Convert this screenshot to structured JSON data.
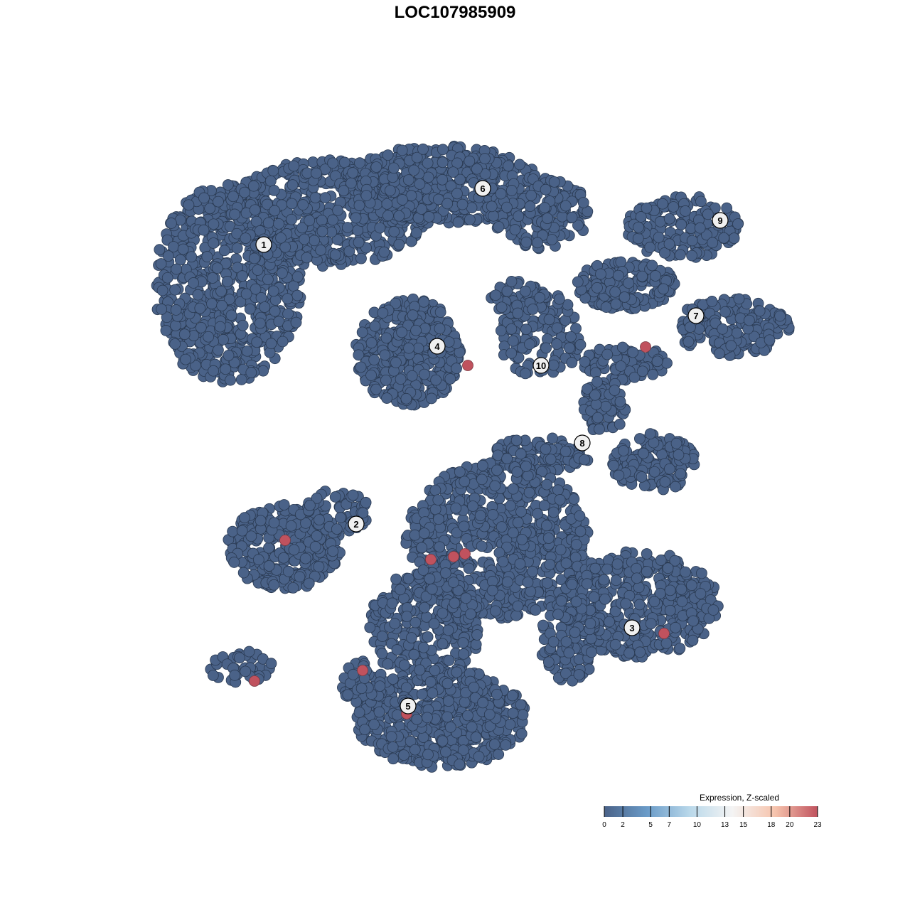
{
  "chart_data": {
    "type": "scatter",
    "title": "LOC107985909",
    "xlabel": "",
    "ylabel": "",
    "axes_visible": false,
    "grid": false,
    "point_color_low": "#4a6288",
    "point_color_high": "#c0525e",
    "clusters": [
      {
        "label": "1",
        "x": -26.9,
        "y": 29.6
      },
      {
        "label": "2",
        "x": -13.9,
        "y": -9.7
      },
      {
        "label": "3",
        "x": 24.9,
        "y": -24.3
      },
      {
        "label": "4",
        "x": -2.5,
        "y": 15.3
      },
      {
        "label": "5",
        "x": -6.6,
        "y": -35.3
      },
      {
        "label": "6",
        "x": 3.9,
        "y": 37.5
      },
      {
        "label": "7",
        "x": 33.9,
        "y": 19.6
      },
      {
        "label": "8",
        "x": 17.9,
        "y": 1.7
      },
      {
        "label": "9",
        "x": 37.3,
        "y": 33.0
      },
      {
        "label": "10",
        "x": 12.1,
        "y": 12.6
      }
    ],
    "highlighted_points": [
      {
        "x": 1.8,
        "y": 12.6,
        "value": 23
      },
      {
        "x": 26.8,
        "y": 15.2,
        "value": 23
      },
      {
        "x": -23.9,
        "y": -12.0,
        "value": 23
      },
      {
        "x": -3.4,
        "y": -14.7,
        "value": 23
      },
      {
        "x": -0.2,
        "y": -14.3,
        "value": 23
      },
      {
        "x": 1.4,
        "y": -13.9,
        "value": 23
      },
      {
        "x": 29.4,
        "y": -25.1,
        "value": 23
      },
      {
        "x": -13.0,
        "y": -30.3,
        "value": 23
      },
      {
        "x": -28.2,
        "y": -31.8,
        "value": 23
      },
      {
        "x": -6.8,
        "y": -36.4,
        "value": 23
      }
    ],
    "baseline_value": 0,
    "legend": {
      "title": "Expression, Z-scaled",
      "position": "bottom-right",
      "ticks": [
        "0",
        "2",
        "5",
        "7",
        "10",
        "13",
        "15",
        "18",
        "20",
        "23"
      ],
      "tick_values": [
        0,
        2,
        5,
        7,
        10,
        13,
        15,
        18,
        20,
        23
      ],
      "range": [
        0,
        23
      ],
      "colors": [
        "#4a6288",
        "#6a9bc8",
        "#b9d8ea",
        "#f4f4f4",
        "#f6c4ad",
        "#c0525e"
      ]
    }
  }
}
